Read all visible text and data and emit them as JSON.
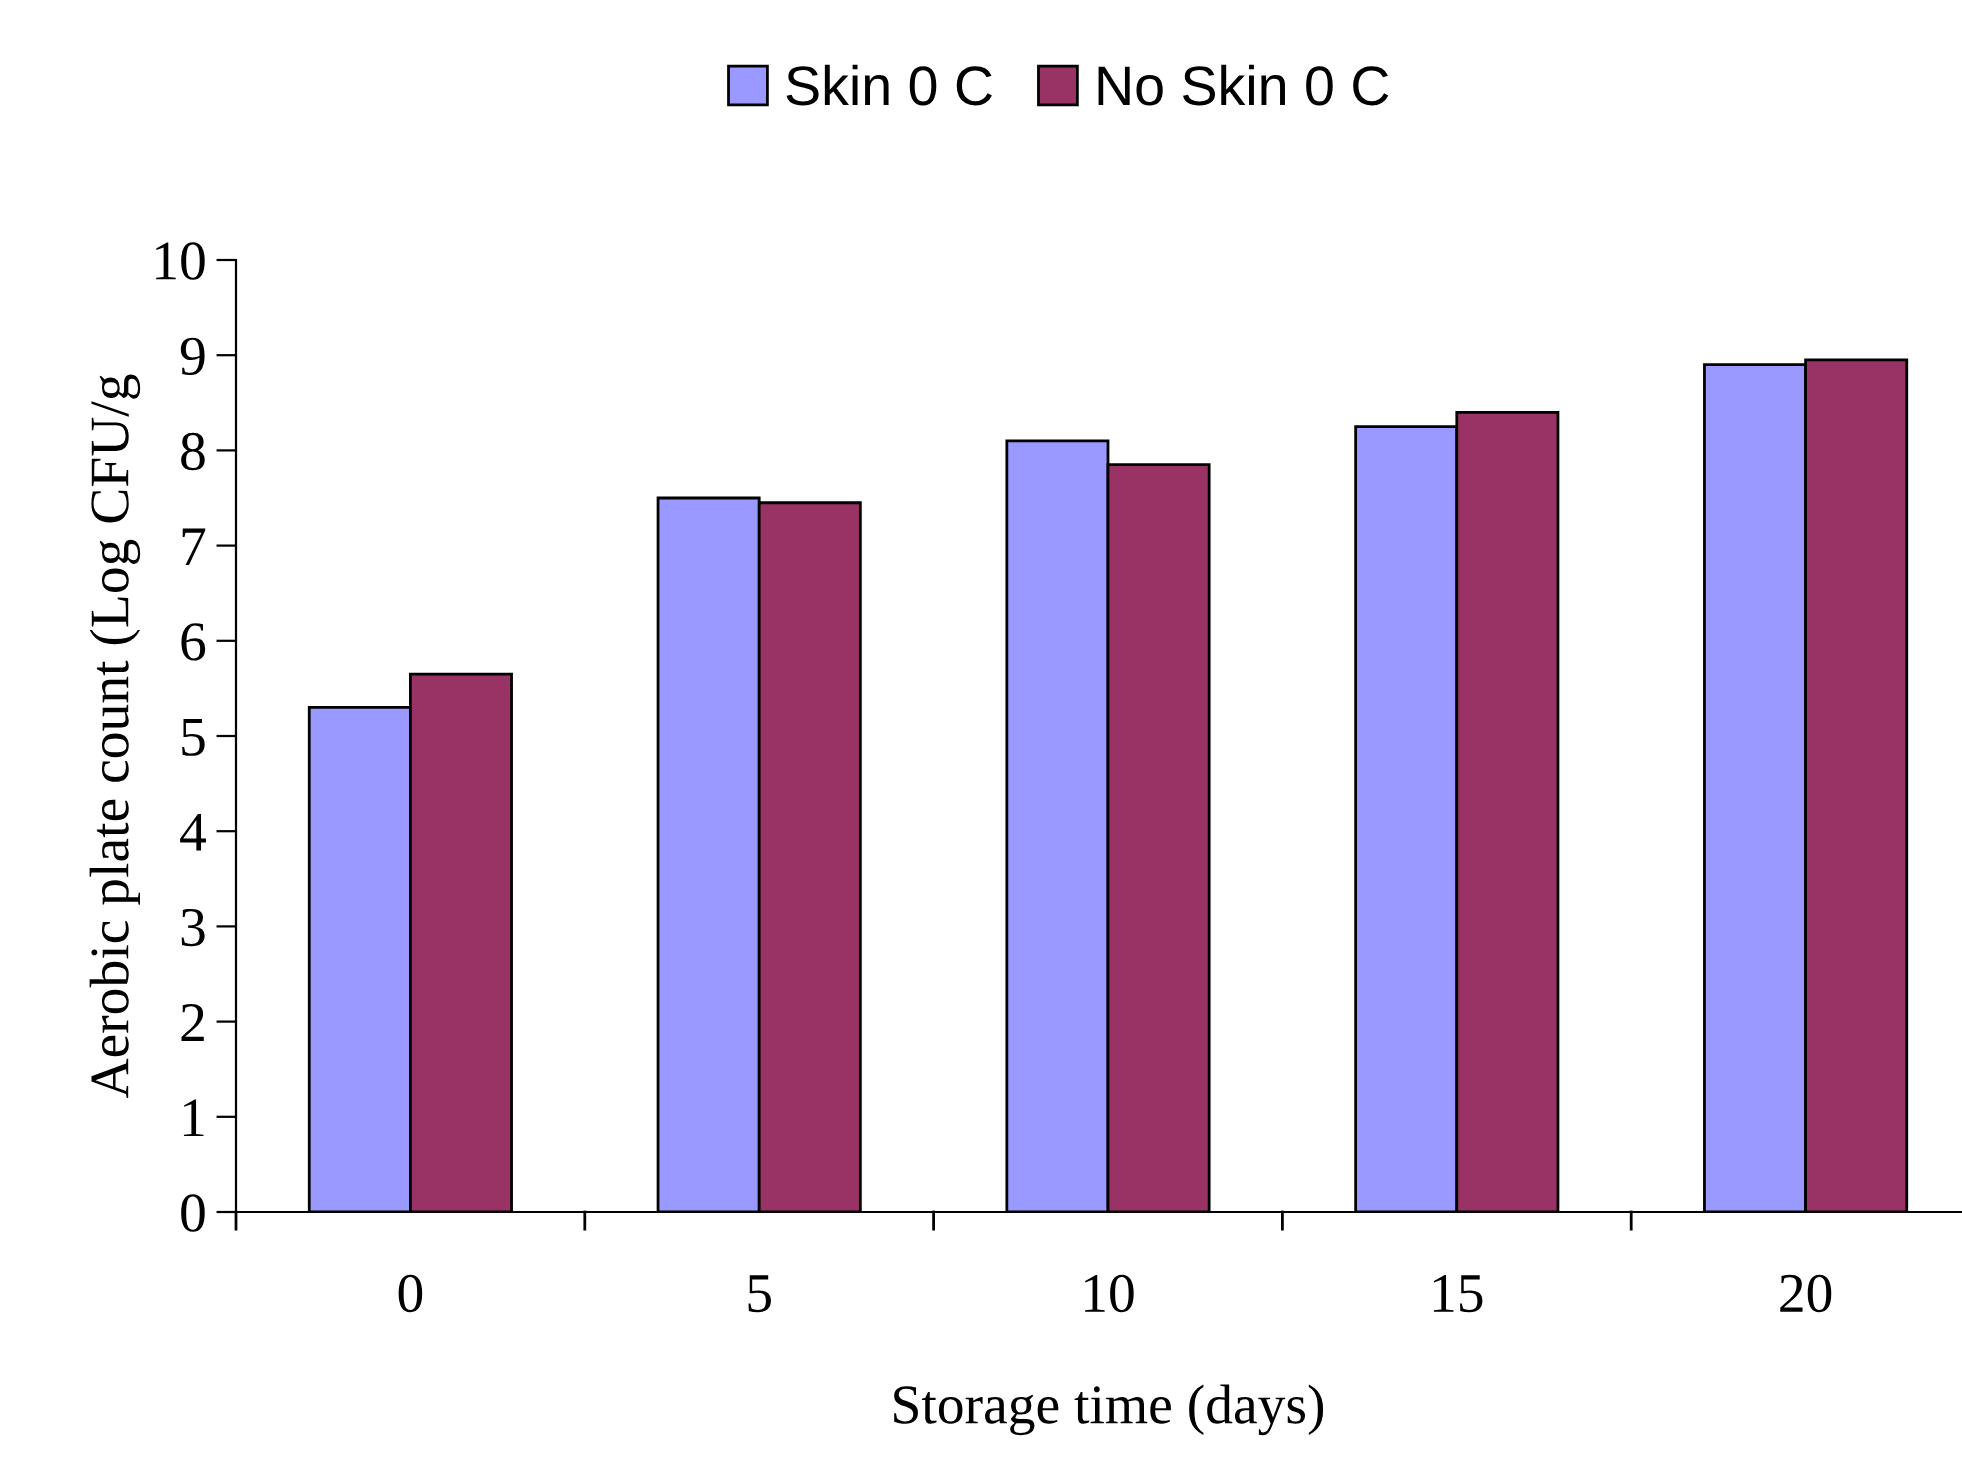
{
  "chart_data": {
    "type": "bar",
    "xlabel": "Storage time (days)",
    "ylabel": "Aerobic plate count (Log CFU/g",
    "categories": [
      "0",
      "5",
      "10",
      "15",
      "20"
    ],
    "series": [
      {
        "name": "Skin 0 C",
        "color": "#9999ff",
        "values": [
          5.3,
          7.5,
          8.1,
          8.25,
          8.9
        ]
      },
      {
        "name": "No Skin 0 C",
        "color": "#993366",
        "values": [
          5.65,
          7.45,
          7.85,
          8.4,
          8.95
        ]
      }
    ],
    "ylim": [
      0,
      10
    ],
    "yticks": [
      0,
      1,
      2,
      3,
      4,
      5,
      6,
      7,
      8,
      9,
      10
    ],
    "grid": false,
    "legend": "top"
  }
}
